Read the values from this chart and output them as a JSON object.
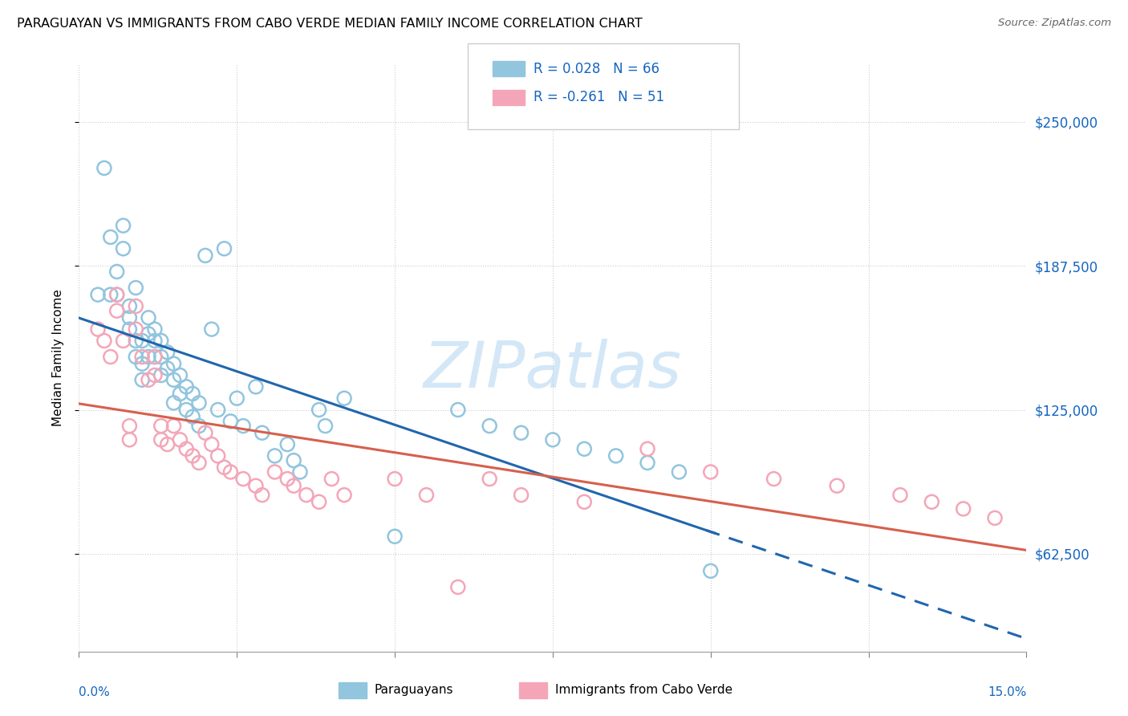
{
  "title": "PARAGUAYAN VS IMMIGRANTS FROM CABO VERDE MEDIAN FAMILY INCOME CORRELATION CHART",
  "source": "Source: ZipAtlas.com",
  "ylabel": "Median Family Income",
  "yticks": [
    62500,
    125000,
    187500,
    250000
  ],
  "ytick_labels": [
    "$62,500",
    "$125,000",
    "$187,500",
    "$250,000"
  ],
  "xmin": 0.0,
  "xmax": 0.15,
  "ymin": 20000,
  "ymax": 275000,
  "blue_scatter_color": "#92c5de",
  "pink_scatter_color": "#f4a6b8",
  "blue_line_color": "#2166ac",
  "pink_line_color": "#d6604d",
  "text_blue": "#1565c0",
  "watermark_color": "#b0d4f1",
  "paraguayan_x": [
    0.003,
    0.004,
    0.005,
    0.005,
    0.006,
    0.006,
    0.007,
    0.007,
    0.008,
    0.008,
    0.008,
    0.009,
    0.009,
    0.009,
    0.01,
    0.01,
    0.01,
    0.011,
    0.011,
    0.011,
    0.012,
    0.012,
    0.012,
    0.013,
    0.013,
    0.013,
    0.014,
    0.014,
    0.015,
    0.015,
    0.015,
    0.016,
    0.016,
    0.017,
    0.017,
    0.018,
    0.018,
    0.019,
    0.019,
    0.02,
    0.021,
    0.022,
    0.023,
    0.024,
    0.025,
    0.026,
    0.028,
    0.029,
    0.031,
    0.033,
    0.034,
    0.035,
    0.038,
    0.039,
    0.042,
    0.05,
    0.06,
    0.065,
    0.07,
    0.075,
    0.08,
    0.085,
    0.09,
    0.095,
    0.1
  ],
  "paraguayan_y": [
    175000,
    230000,
    200000,
    175000,
    185000,
    175000,
    205000,
    195000,
    170000,
    165000,
    160000,
    178000,
    155000,
    148000,
    155000,
    145000,
    138000,
    165000,
    158000,
    148000,
    160000,
    155000,
    148000,
    155000,
    148000,
    140000,
    150000,
    143000,
    145000,
    138000,
    128000,
    140000,
    132000,
    135000,
    125000,
    132000,
    122000,
    128000,
    118000,
    192000,
    160000,
    125000,
    195000,
    120000,
    130000,
    118000,
    135000,
    115000,
    105000,
    110000,
    103000,
    98000,
    125000,
    118000,
    130000,
    70000,
    125000,
    118000,
    115000,
    112000,
    108000,
    105000,
    102000,
    98000,
    55000
  ],
  "caboverde_x": [
    0.003,
    0.004,
    0.005,
    0.006,
    0.006,
    0.007,
    0.008,
    0.008,
    0.009,
    0.009,
    0.01,
    0.011,
    0.012,
    0.012,
    0.013,
    0.013,
    0.014,
    0.015,
    0.016,
    0.017,
    0.018,
    0.019,
    0.02,
    0.021,
    0.022,
    0.023,
    0.024,
    0.026,
    0.028,
    0.029,
    0.031,
    0.033,
    0.034,
    0.036,
    0.038,
    0.04,
    0.042,
    0.05,
    0.055,
    0.06,
    0.065,
    0.07,
    0.08,
    0.09,
    0.1,
    0.11,
    0.12,
    0.13,
    0.135,
    0.14,
    0.145
  ],
  "caboverde_y": [
    160000,
    155000,
    148000,
    175000,
    168000,
    155000,
    118000,
    112000,
    170000,
    160000,
    148000,
    138000,
    148000,
    140000,
    118000,
    112000,
    110000,
    118000,
    112000,
    108000,
    105000,
    102000,
    115000,
    110000,
    105000,
    100000,
    98000,
    95000,
    92000,
    88000,
    98000,
    95000,
    92000,
    88000,
    85000,
    95000,
    88000,
    95000,
    88000,
    48000,
    95000,
    88000,
    85000,
    108000,
    98000,
    95000,
    92000,
    88000,
    85000,
    82000,
    78000
  ]
}
